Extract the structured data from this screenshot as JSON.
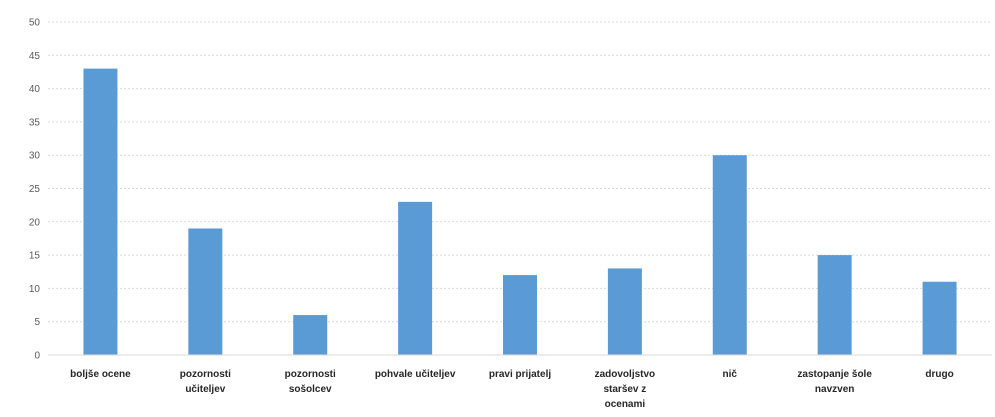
{
  "chart_data": {
    "type": "bar",
    "title": "",
    "xlabel": "",
    "ylabel": "",
    "ylim": [
      0,
      50
    ],
    "y_ticks": [
      0,
      5,
      10,
      15,
      20,
      25,
      30,
      35,
      40,
      45,
      50
    ],
    "grid": true,
    "legend": "none",
    "bar_color": "#5B9BD5",
    "grid_color": "#D9D9D9",
    "categories": [
      [
        "boljše ocene"
      ],
      [
        "pozornosti",
        "učiteljev"
      ],
      [
        "pozornosti",
        "sošolcev"
      ],
      [
        "pohvale učiteljev"
      ],
      [
        "pravi prijatelj"
      ],
      [
        "zadovoljstvo",
        "staršev z",
        "ocenami"
      ],
      [
        "nič"
      ],
      [
        "zastopanje šole",
        "navzven"
      ],
      [
        "drugo"
      ]
    ],
    "values": [
      43,
      19,
      6,
      23,
      12,
      13,
      30,
      15,
      11
    ]
  }
}
